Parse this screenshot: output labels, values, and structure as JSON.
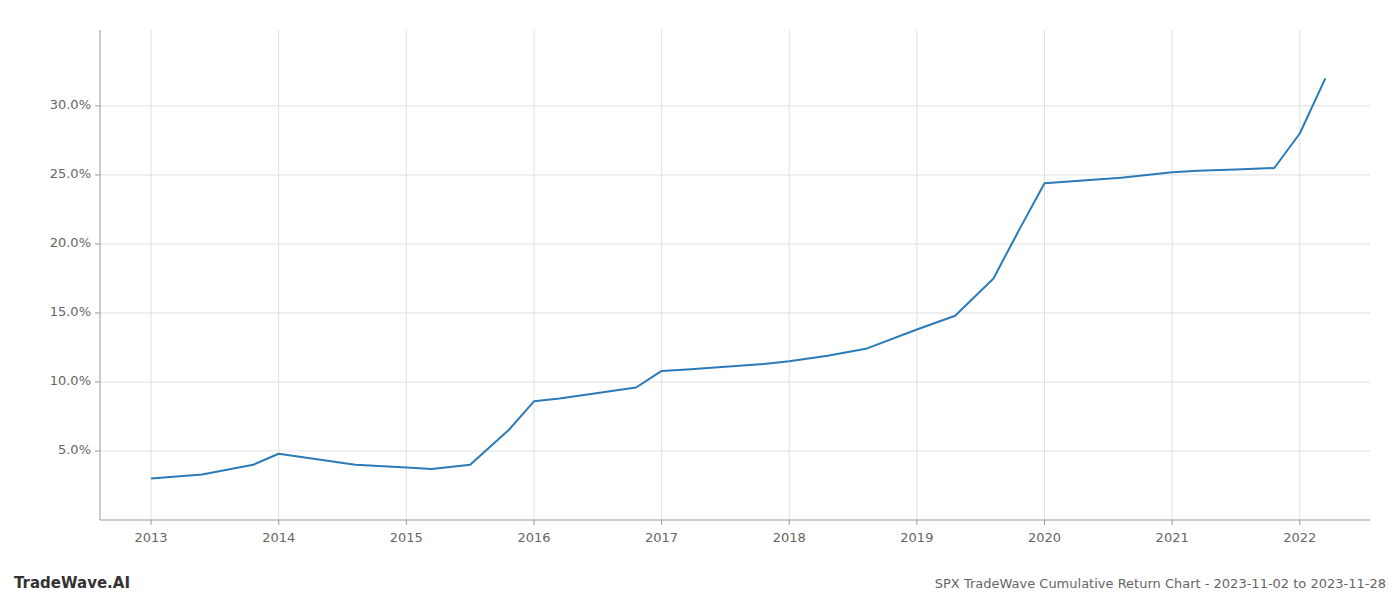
{
  "chart_data": {
    "type": "line",
    "title": "SPX TradeWave Cumulative Return Chart - 2023-11-02 to 2023-11-28",
    "annotations": [
      "TradeWave.AI"
    ],
    "x": [
      2013.0,
      2013.4,
      2013.8,
      2014.0,
      2014.3,
      2014.6,
      2015.0,
      2015.2,
      2015.5,
      2015.8,
      2016.0,
      2016.2,
      2016.5,
      2016.8,
      2017.0,
      2017.2,
      2017.5,
      2017.8,
      2018.0,
      2018.3,
      2018.6,
      2019.0,
      2019.3,
      2019.6,
      2019.8,
      2020.0,
      2020.3,
      2020.6,
      2021.0,
      2021.2,
      2021.5,
      2021.8,
      2022.0,
      2022.2
    ],
    "values": [
      0.03,
      0.033,
      0.04,
      0.048,
      0.044,
      0.04,
      0.038,
      0.037,
      0.04,
      0.065,
      0.086,
      0.088,
      0.092,
      0.096,
      0.108,
      0.109,
      0.111,
      0.113,
      0.115,
      0.119,
      0.124,
      0.138,
      0.148,
      0.175,
      0.21,
      0.244,
      0.246,
      0.248,
      0.252,
      0.253,
      0.254,
      0.255,
      0.28,
      0.32
    ],
    "color": "#2b7bb9",
    "xlim": [
      2012.6,
      2022.55
    ],
    "ylim": [
      0,
      0.355
    ],
    "xticks": [
      2013,
      2014,
      2015,
      2016,
      2017,
      2018,
      2019,
      2020,
      2021,
      2022
    ],
    "yticks": [
      {
        "value": 0.05,
        "label": "5.0%"
      },
      {
        "value": 0.1,
        "label": "10.0%"
      },
      {
        "value": 0.15,
        "label": "15.0%"
      },
      {
        "value": 0.2,
        "label": "20.0%"
      },
      {
        "value": 0.25,
        "label": "25.0%"
      },
      {
        "value": 0.3,
        "label": "30.0%"
      }
    ],
    "grid": true
  }
}
